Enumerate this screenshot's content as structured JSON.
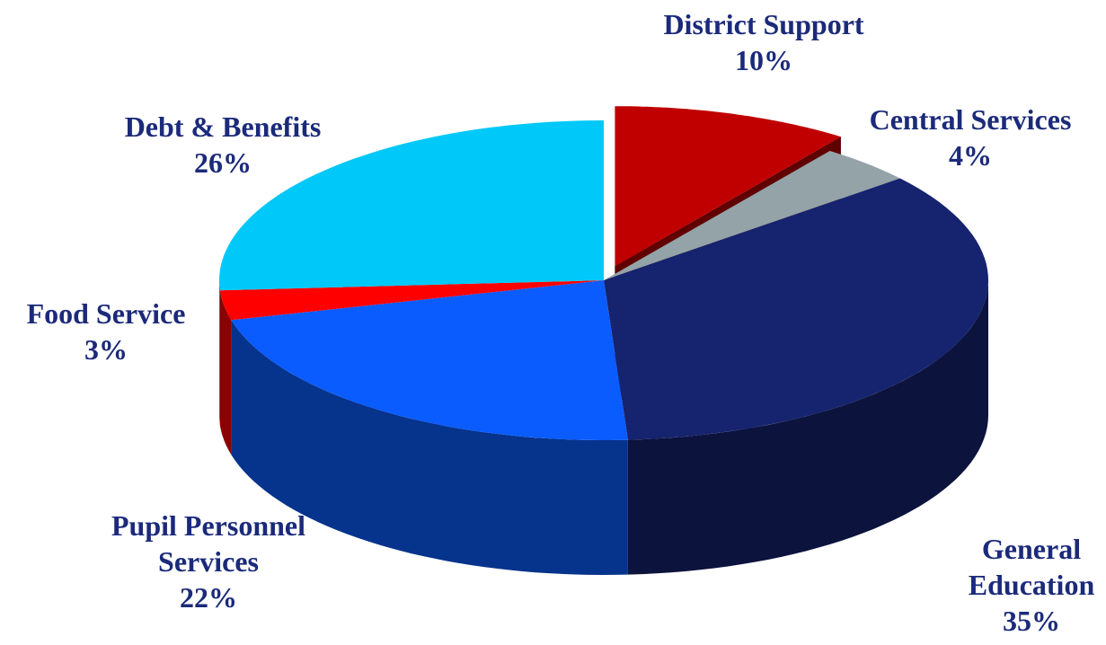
{
  "chart_data": {
    "type": "pie",
    "title": "",
    "legend": "none",
    "slices": [
      {
        "label": "District Support",
        "label_lines": [
          "District Support"
        ],
        "value": 10,
        "value_label": "10%",
        "color": "#c00000",
        "exploded": true
      },
      {
        "label": "Central Services",
        "label_lines": [
          "Central Services"
        ],
        "value": 4,
        "value_label": "4%",
        "color": "#94a3a8",
        "exploded": false
      },
      {
        "label": "General Education",
        "label_lines": [
          "General",
          "Education"
        ],
        "value": 35,
        "value_label": "35%",
        "color": "#16236e",
        "exploded": false
      },
      {
        "label": "Pupil Personnel Services",
        "label_lines": [
          "Pupil Personnel",
          "Services"
        ],
        "value": 22,
        "value_label": "22%",
        "color": "#0a5cff",
        "exploded": false
      },
      {
        "label": "Food Service",
        "label_lines": [
          "Food Service"
        ],
        "value": 3,
        "value_label": "3%",
        "color": "#ff0000",
        "exploded": false
      },
      {
        "label": "Debt & Benefits",
        "label_lines": [
          "Debt & Benefits"
        ],
        "value": 26,
        "value_label": "26%",
        "color": "#00c8f8",
        "exploded": false
      }
    ]
  }
}
